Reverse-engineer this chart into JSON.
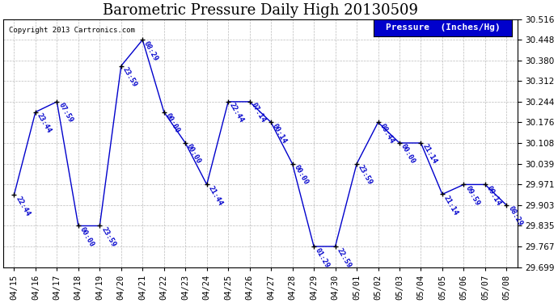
{
  "title": "Barometric Pressure Daily High 20130509",
  "copyright": "Copyright 2013 Cartronics.com",
  "legend_label": "Pressure  (Inches/Hg)",
  "dates": [
    "04/15",
    "04/16",
    "04/17",
    "04/18",
    "04/19",
    "04/20",
    "04/21",
    "04/22",
    "04/23",
    "04/24",
    "04/25",
    "04/26",
    "04/27",
    "04/28",
    "04/29",
    "04/30",
    "05/01",
    "05/02",
    "05/03",
    "05/04",
    "05/05",
    "05/06",
    "05/07",
    "05/08"
  ],
  "values": [
    29.937,
    30.21,
    30.244,
    29.835,
    29.835,
    30.362,
    30.448,
    30.21,
    30.108,
    29.971,
    30.244,
    30.244,
    30.176,
    30.039,
    29.767,
    29.767,
    30.039,
    30.176,
    30.108,
    30.108,
    29.939,
    29.971,
    29.971,
    29.903
  ],
  "times": [
    "22:44",
    "23:44",
    "07:59",
    "00:00",
    "23:59",
    "23:59",
    "08:29",
    "00:00",
    "00:00",
    "21:44",
    "22:44",
    "07:14",
    "00:14",
    "00:00",
    "01:29",
    "22:59",
    "23:59",
    "08:44",
    "00:00",
    "21:14",
    "21:14",
    "09:59",
    "09:14",
    "08:29"
  ],
  "line_color": "#0000cc",
  "marker_color": "#000000",
  "label_color": "#0000cc",
  "background_color": "#ffffff",
  "grid_color": "#bbbbbb",
  "ylim": [
    29.699,
    30.516
  ],
  "yticks": [
    29.699,
    29.767,
    29.835,
    29.903,
    29.971,
    30.039,
    30.108,
    30.176,
    30.244,
    30.312,
    30.38,
    30.448,
    30.516
  ],
  "title_fontsize": 13,
  "label_fontsize": 6.5,
  "tick_fontsize": 7.5,
  "legend_fontsize": 8
}
